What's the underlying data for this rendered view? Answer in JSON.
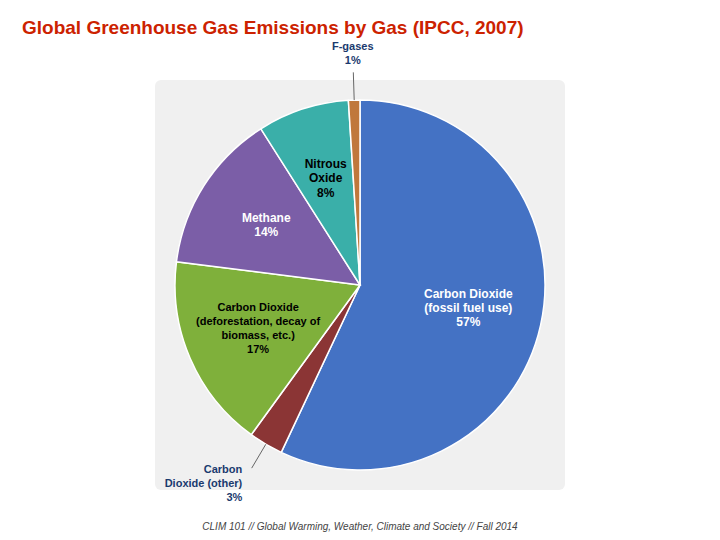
{
  "chart_data": {
    "type": "pie",
    "title": "Global Greenhouse Gas Emissions by Gas (IPCC, 2007)",
    "annotations": [
      "CLIM 101 // Global Warming, Weather, Climate and Society // Fall 2014"
    ],
    "categories": [
      "Carbon Dioxide\n(fossil fuel use)",
      "Carbon\nDioxide (other)",
      "Carbon Dioxide\n(deforestation, decay of\nbiomass, etc.)",
      "Methane",
      "Nitrous\nOxide",
      "F-gases"
    ],
    "values": [
      57,
      3,
      17,
      14,
      8,
      1
    ],
    "value_labels": [
      "57%",
      "3%",
      "17%",
      "14%",
      "8%",
      "1%"
    ],
    "colors": [
      "#4472C4",
      "#8B3535",
      "#7FB03B",
      "#7B5EA7",
      "#3AAFA9",
      "#C0783C"
    ],
    "data_labels": true
  }
}
